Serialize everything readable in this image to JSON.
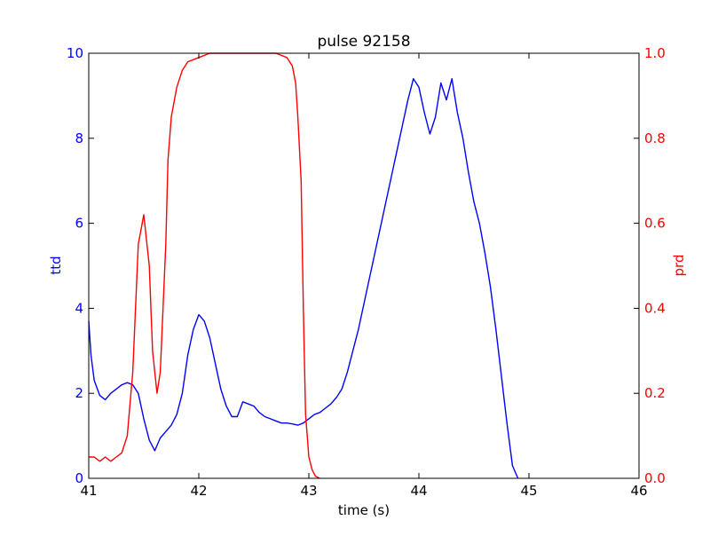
{
  "chart_data": {
    "type": "line",
    "title": "pulse 92158",
    "xlabel": "time (s)",
    "xlim": [
      41,
      46
    ],
    "xticks": [
      "41",
      "42",
      "43",
      "44",
      "45",
      "46"
    ],
    "grid": false,
    "legend": "none",
    "y_left": {
      "label": "ttd",
      "color": "#0000ff",
      "lim": [
        0,
        10
      ],
      "ticks": [
        "0",
        "2",
        "4",
        "6",
        "8",
        "10"
      ]
    },
    "y_right": {
      "label": "prd",
      "color": "#ff0000",
      "lim": [
        0,
        1
      ],
      "ticks": [
        "0.0",
        "0.2",
        "0.4",
        "0.6",
        "0.8",
        "1.0"
      ]
    },
    "series": [
      {
        "axis": "left",
        "color": "#0000ff",
        "x": [
          41.0,
          41.02,
          41.05,
          41.1,
          41.15,
          41.2,
          41.25,
          41.3,
          41.35,
          41.4,
          41.45,
          41.5,
          41.55,
          41.6,
          41.65,
          41.7,
          41.75,
          41.8,
          41.85,
          41.9,
          41.95,
          42.0,
          42.05,
          42.1,
          42.15,
          42.2,
          42.25,
          42.3,
          42.35,
          42.4,
          42.45,
          42.5,
          42.55,
          42.6,
          42.65,
          42.7,
          42.75,
          42.8,
          42.85,
          42.9,
          42.95,
          43.0,
          43.05,
          43.1,
          43.15,
          43.2,
          43.25,
          43.3,
          43.35,
          43.4,
          43.45,
          43.5,
          43.55,
          43.6,
          43.65,
          43.7,
          43.75,
          43.8,
          43.85,
          43.9,
          43.95,
          44.0,
          44.05,
          44.1,
          44.15,
          44.2,
          44.25,
          44.3,
          44.35,
          44.4,
          44.45,
          44.5,
          44.55,
          44.6,
          44.65,
          44.7,
          44.75,
          44.8,
          44.85,
          44.9
        ],
        "y": [
          3.7,
          2.9,
          2.3,
          1.95,
          1.85,
          2.0,
          2.1,
          2.2,
          2.25,
          2.2,
          2.0,
          1.4,
          0.9,
          0.65,
          0.95,
          1.1,
          1.25,
          1.5,
          2.0,
          2.9,
          3.5,
          3.85,
          3.7,
          3.3,
          2.7,
          2.1,
          1.7,
          1.45,
          1.45,
          1.8,
          1.75,
          1.7,
          1.55,
          1.45,
          1.4,
          1.35,
          1.3,
          1.3,
          1.28,
          1.25,
          1.3,
          1.4,
          1.5,
          1.55,
          1.65,
          1.75,
          1.9,
          2.1,
          2.5,
          3.0,
          3.5,
          4.1,
          4.7,
          5.3,
          5.9,
          6.5,
          7.1,
          7.7,
          8.3,
          8.9,
          9.4,
          9.2,
          8.6,
          8.1,
          8.5,
          9.3,
          8.9,
          9.4,
          8.6,
          8.0,
          7.2,
          6.5,
          6.0,
          5.3,
          4.5,
          3.5,
          2.4,
          1.3,
          0.3,
          0.0
        ]
      },
      {
        "axis": "right",
        "color": "#ff0000",
        "x": [
          41.0,
          41.05,
          41.1,
          41.15,
          41.2,
          41.25,
          41.3,
          41.35,
          41.4,
          41.45,
          41.5,
          41.55,
          41.58,
          41.62,
          41.65,
          41.7,
          41.72,
          41.75,
          41.8,
          41.85,
          41.9,
          42.0,
          42.1,
          42.2,
          42.3,
          42.5,
          42.6,
          42.7,
          42.8,
          42.85,
          42.88,
          42.9,
          42.93,
          42.95,
          42.97,
          43.0,
          43.03,
          43.06,
          43.1
        ],
        "y": [
          0.05,
          0.05,
          0.04,
          0.05,
          0.04,
          0.05,
          0.06,
          0.1,
          0.25,
          0.55,
          0.62,
          0.5,
          0.3,
          0.2,
          0.25,
          0.55,
          0.75,
          0.85,
          0.92,
          0.96,
          0.98,
          0.99,
          1.0,
          1.0,
          1.0,
          1.0,
          1.0,
          1.0,
          0.99,
          0.97,
          0.93,
          0.85,
          0.7,
          0.4,
          0.15,
          0.05,
          0.02,
          0.005,
          0.0
        ]
      }
    ]
  }
}
